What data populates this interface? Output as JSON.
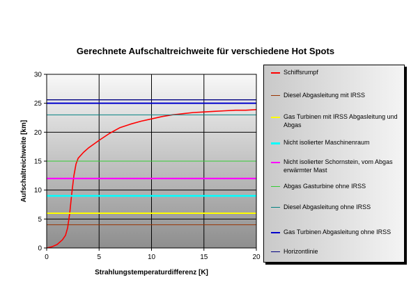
{
  "chart_data": {
    "type": "line",
    "title": "Gerechnete Aufschaltreichweite für verschiedene Hot Spots",
    "xlabel": "Strahlungstemperaturdifferenz [K]",
    "ylabel": "Aufschaltreichweite [km]",
    "xlim": [
      0,
      20
    ],
    "ylim": [
      0,
      30
    ],
    "x_ticks": [
      0,
      5,
      10,
      15,
      20
    ],
    "y_ticks": [
      0,
      5,
      10,
      15,
      20,
      25,
      30
    ],
    "grid": true,
    "legend_position": "right",
    "series": [
      {
        "name": "Schiffsrumpf",
        "color": "#ff0000",
        "width": 1.6,
        "x": [
          0,
          0.5,
          1.0,
          1.5,
          1.8,
          2.0,
          2.2,
          2.4,
          2.6,
          2.8,
          3.0,
          3.5,
          4.0,
          5.0,
          6.0,
          7.0,
          8.0,
          9.0,
          10.0,
          11.0,
          12.0,
          13.0,
          14.0,
          15.0,
          16.0,
          17.0,
          18.0,
          19.0,
          20.0
        ],
        "y": [
          0,
          0.2,
          0.6,
          1.4,
          2.2,
          3.5,
          6.0,
          9.5,
          12.5,
          14.5,
          15.5,
          16.5,
          17.3,
          18.6,
          19.8,
          20.8,
          21.4,
          21.9,
          22.3,
          22.7,
          23.0,
          23.2,
          23.4,
          23.5,
          23.6,
          23.7,
          23.8,
          23.8,
          23.9
        ]
      },
      {
        "name": "Diesel Abgasleitung mit IRSS",
        "color": "#993300",
        "width": 1,
        "value": 4
      },
      {
        "name": "Gas Turbinen mit IRSS Abgasleitung und Abgas",
        "color": "#ffff00",
        "width": 2,
        "value": 6
      },
      {
        "name": "Nicht isolierter Maschinenraum",
        "color": "#00ffff",
        "width": 2.6,
        "value": 9
      },
      {
        "name": "Nicht isolierter Schornstein, vom Abgas erwärmter Mast",
        "color": "#ff00ff",
        "width": 2.2,
        "value": 12
      },
      {
        "name": "Abgas Gasturbine ohne IRSS",
        "color": "#33cc33",
        "width": 1,
        "value": 15
      },
      {
        "name": "Diesel Abgasleitung ohne IRSS",
        "color": "#008080",
        "width": 1,
        "value": 23
      },
      {
        "name": "Gas Turbinen Abgasleitung ohne IRSS",
        "color": "#0000cc",
        "width": 2,
        "value": 25
      },
      {
        "name": "Horizontlinie",
        "color": "#000080",
        "width": 1.4,
        "value": 25.6
      }
    ]
  }
}
